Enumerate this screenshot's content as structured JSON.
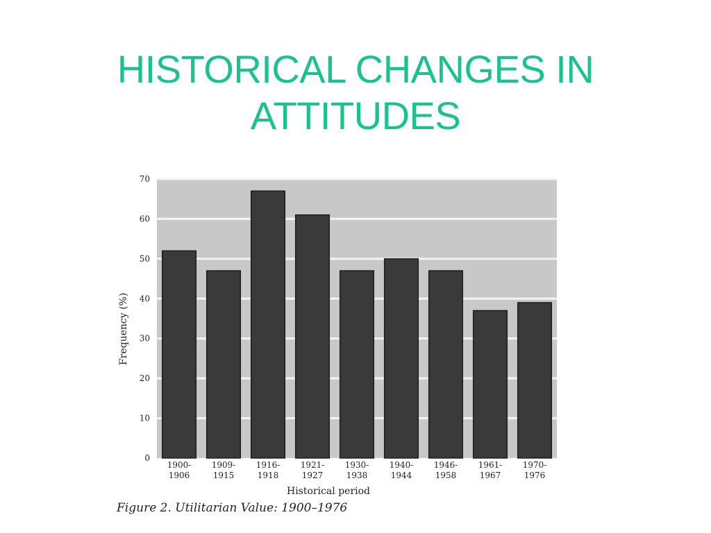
{
  "slide": {
    "title_line1": "HISTORICAL CHANGES IN",
    "title_line2": "ATTITUDES"
  },
  "colors": {
    "title": "#19c28f",
    "plot_background": "#c8c8c8",
    "gridline": "#f4f4f4",
    "bar_fill": "#3a3a3a",
    "bar_edge": "#1e1e1e",
    "text": "#222222"
  },
  "chart_data": {
    "type": "bar",
    "categories": [
      "1900-1906",
      "1909-1915",
      "1916-1918",
      "1921-1927",
      "1930-1938",
      "1940-1944",
      "1946-1958",
      "1961-1967",
      "1970-1976"
    ],
    "category_lines": [
      [
        "1900-",
        "1906"
      ],
      [
        "1909-",
        "1915"
      ],
      [
        "1916-",
        "1918"
      ],
      [
        "1921-",
        "1927"
      ],
      [
        "1930-",
        "1938"
      ],
      [
        "1940-",
        "1944"
      ],
      [
        "1946-",
        "1958"
      ],
      [
        "1961-",
        "1967"
      ],
      [
        "1970-",
        "1976"
      ]
    ],
    "values": [
      52,
      47,
      67,
      61,
      47,
      50,
      47,
      37,
      39
    ],
    "xlabel": "Historical period",
    "ylabel": "Frequency (%)",
    "ylim": [
      0,
      70
    ],
    "yticks": [
      0,
      10,
      20,
      30,
      40,
      50,
      60,
      70
    ],
    "grid": true,
    "caption": "Figure 2.  Utilitarian Value: 1900–1976"
  }
}
